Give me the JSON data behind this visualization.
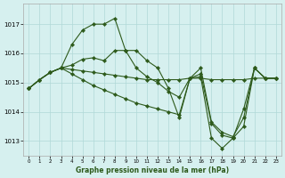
{
  "title": "Graphe pression niveau de la mer (hPa)",
  "background_color": "#d6f0ef",
  "grid_color": "#b0d8d8",
  "line_color": "#2d5a1b",
  "marker_color": "#2d5a1b",
  "xlim": [
    -0.5,
    23.5
  ],
  "ylim": [
    1012.5,
    1017.7
  ],
  "yticks": [
    1013,
    1014,
    1015,
    1016,
    1017
  ],
  "xticks": [
    0,
    1,
    2,
    3,
    4,
    5,
    6,
    7,
    8,
    9,
    10,
    11,
    12,
    13,
    14,
    15,
    16,
    17,
    18,
    19,
    20,
    21,
    22,
    23
  ],
  "series": [
    {
      "x": [
        0,
        1,
        2,
        3,
        4,
        5,
        6,
        7,
        8,
        9,
        10,
        11,
        12,
        13,
        14,
        15,
        16,
        17,
        18,
        19,
        20,
        21,
        22,
        23
      ],
      "y": [
        1014.8,
        1015.1,
        1015.35,
        1015.5,
        1016.3,
        1016.8,
        1017.0,
        1017.0,
        1017.2,
        1016.1,
        1016.1,
        1015.75,
        1015.5,
        1014.8,
        1013.8,
        1015.15,
        1015.2,
        1013.1,
        1012.75,
        1013.1,
        1014.1,
        1015.5,
        1015.15,
        1015.15
      ]
    },
    {
      "x": [
        0,
        1,
        2,
        3,
        4,
        5,
        6,
        7,
        8,
        9,
        10,
        11,
        12,
        13,
        14,
        15,
        16,
        17,
        18,
        19,
        20,
        21,
        22,
        23
      ],
      "y": [
        1014.8,
        1015.1,
        1015.35,
        1015.5,
        1015.45,
        1015.4,
        1015.35,
        1015.3,
        1015.25,
        1015.2,
        1015.15,
        1015.1,
        1015.1,
        1015.1,
        1015.1,
        1015.15,
        1015.15,
        1015.1,
        1015.1,
        1015.1,
        1015.1,
        1015.15,
        1015.15,
        1015.15
      ]
    },
    {
      "x": [
        0,
        1,
        2,
        3,
        4,
        5,
        6,
        7,
        8,
        9,
        10,
        11,
        12,
        13,
        14,
        15,
        16,
        17,
        18,
        19,
        20,
        21,
        22,
        23
      ],
      "y": [
        1014.8,
        1015.1,
        1015.35,
        1015.5,
        1015.3,
        1015.1,
        1014.9,
        1014.75,
        1014.6,
        1014.45,
        1014.3,
        1014.2,
        1014.1,
        1014.0,
        1013.9,
        1015.15,
        1015.5,
        1013.65,
        1013.3,
        1013.15,
        1013.8,
        1015.5,
        1015.15,
        1015.15
      ]
    },
    {
      "x": [
        0,
        1,
        2,
        3,
        4,
        5,
        6,
        7,
        8,
        9,
        10,
        11,
        12,
        13,
        14,
        15,
        16,
        17,
        18,
        19,
        20,
        21,
        22,
        23
      ],
      "y": [
        1014.8,
        1015.1,
        1015.35,
        1015.5,
        1015.6,
        1015.8,
        1015.85,
        1015.75,
        1016.1,
        1016.1,
        1015.5,
        1015.2,
        1015.0,
        1014.7,
        1014.5,
        1015.15,
        1015.3,
        1013.6,
        1013.2,
        1013.1,
        1013.5,
        1015.5,
        1015.15,
        1015.15
      ]
    }
  ]
}
